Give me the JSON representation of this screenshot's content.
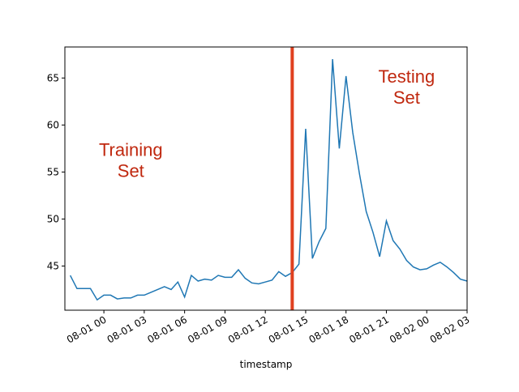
{
  "chart_data": {
    "type": "line",
    "x_label": "timestamp",
    "x": [
      "07-31 21:30",
      "07-31 22:00",
      "07-31 22:30",
      "07-31 23:00",
      "07-31 23:30",
      "08-01 00:00",
      "08-01 00:30",
      "08-01 01:00",
      "08-01 01:30",
      "08-01 02:00",
      "08-01 02:30",
      "08-01 03:00",
      "08-01 03:30",
      "08-01 04:00",
      "08-01 04:30",
      "08-01 05:00",
      "08-01 05:30",
      "08-01 06:00",
      "08-01 06:30",
      "08-01 07:00",
      "08-01 07:30",
      "08-01 08:00",
      "08-01 08:30",
      "08-01 09:00",
      "08-01 09:30",
      "08-01 10:00",
      "08-01 10:30",
      "08-01 11:00",
      "08-01 11:30",
      "08-01 12:00",
      "08-01 12:30",
      "08-01 13:00",
      "08-01 13:30",
      "08-01 14:00",
      "08-01 14:30",
      "08-01 15:00",
      "08-01 15:30",
      "08-01 16:00",
      "08-01 16:30",
      "08-01 17:00",
      "08-01 17:30",
      "08-01 18:00",
      "08-01 18:30",
      "08-01 19:00",
      "08-01 19:30",
      "08-01 20:00",
      "08-01 20:30",
      "08-01 21:00",
      "08-01 21:30",
      "08-01 22:00",
      "08-01 22:30",
      "08-01 23:00",
      "08-01 23:30",
      "08-02 00:00",
      "08-02 00:30",
      "08-02 01:00",
      "08-02 01:30",
      "08-02 02:00",
      "08-02 02:30",
      "08-02 03:00"
    ],
    "series": [
      {
        "color": "#1f77b4",
        "values": [
          44.0,
          42.6,
          42.6,
          42.6,
          41.4,
          41.9,
          41.9,
          41.5,
          41.6,
          41.6,
          41.9,
          41.9,
          42.2,
          42.5,
          42.8,
          42.5,
          43.3,
          41.7,
          44.0,
          43.4,
          43.6,
          43.5,
          44.0,
          43.8,
          43.8,
          44.6,
          43.7,
          43.2,
          43.1,
          43.3,
          43.5,
          44.4,
          43.9,
          44.3,
          45.2,
          59.6,
          45.8,
          47.6,
          49.0,
          67.0,
          57.5,
          65.2,
          59.2,
          54.8,
          50.8,
          48.6,
          46.0,
          49.8,
          47.7,
          46.8,
          45.6,
          44.9,
          44.6,
          44.7,
          45.1,
          45.4,
          44.9,
          44.3,
          43.6,
          43.4
        ]
      }
    ],
    "xlim": [
      "07-31 21:06",
      "08-02 03:00"
    ],
    "xticks": [
      "08-01 00",
      "08-01 03",
      "08-01 06",
      "08-01 09",
      "08-01 12",
      "08-01 15",
      "08-01 18",
      "08-01 21",
      "08-02 00",
      "08-02 03"
    ],
    "ylim": [
      40.3,
      68.3
    ],
    "yticks": [
      45,
      50,
      55,
      60,
      65
    ],
    "split_x": "08-01 14:00",
    "split_color": "#e0401f",
    "annotation_color": "#c0280f",
    "annotations": [
      {
        "lines": [
          "Training",
          "Set"
        ],
        "x": "08-01 02:00",
        "y": 56.7
      },
      {
        "lines": [
          "Testing",
          "Set"
        ],
        "x": "08-01 22:30",
        "y": 64.5
      }
    ]
  }
}
